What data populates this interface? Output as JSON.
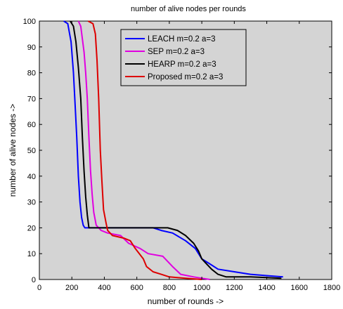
{
  "chart_data": {
    "type": "line",
    "title": "number of alive nodes per rounds",
    "xlabel": "number of rounds ->",
    "ylabel": "number of alive nodes ->",
    "xlim": [
      0,
      1800
    ],
    "ylim": [
      0,
      100
    ],
    "xticks": [
      0,
      200,
      400,
      600,
      800,
      1000,
      1200,
      1400,
      1600,
      1800
    ],
    "yticks": [
      0,
      10,
      20,
      30,
      40,
      50,
      60,
      70,
      80,
      90,
      100
    ],
    "grid": false,
    "plot_background": "#d4d4d4",
    "legend_position": "top-center",
    "series": [
      {
        "name": "LEACH m=0.2 a=3",
        "color": "#0000ff",
        "points": [
          [
            150,
            100
          ],
          [
            175,
            99
          ],
          [
            195,
            92
          ],
          [
            210,
            80
          ],
          [
            220,
            68
          ],
          [
            230,
            55
          ],
          [
            240,
            40
          ],
          [
            250,
            30
          ],
          [
            260,
            24
          ],
          [
            270,
            21
          ],
          [
            280,
            20
          ],
          [
            700,
            20
          ],
          [
            750,
            19
          ],
          [
            820,
            18
          ],
          [
            900,
            15
          ],
          [
            960,
            12
          ],
          [
            1000,
            8
          ],
          [
            1050,
            6
          ],
          [
            1100,
            4
          ],
          [
            1200,
            3
          ],
          [
            1300,
            2
          ],
          [
            1400,
            1.5
          ],
          [
            1500,
            1
          ]
        ]
      },
      {
        "name": "SEP m=0.2 a=3",
        "color": "#e000e0",
        "points": [
          [
            240,
            100
          ],
          [
            255,
            98
          ],
          [
            275,
            88
          ],
          [
            285,
            80
          ],
          [
            295,
            70
          ],
          [
            305,
            55
          ],
          [
            315,
            42
          ],
          [
            325,
            33
          ],
          [
            335,
            26
          ],
          [
            350,
            21
          ],
          [
            380,
            19
          ],
          [
            420,
            18
          ],
          [
            500,
            17
          ],
          [
            550,
            14
          ],
          [
            620,
            12
          ],
          [
            670,
            10
          ],
          [
            760,
            9
          ],
          [
            820,
            5
          ],
          [
            870,
            2
          ],
          [
            950,
            1
          ],
          [
            1000,
            0.5
          ],
          [
            1050,
            0
          ]
        ]
      },
      {
        "name": "HEARP m=0.2 a=3",
        "color": "#000000",
        "points": [
          [
            190,
            100
          ],
          [
            210,
            98
          ],
          [
            225,
            92
          ],
          [
            240,
            82
          ],
          [
            255,
            70
          ],
          [
            265,
            55
          ],
          [
            275,
            42
          ],
          [
            285,
            32
          ],
          [
            295,
            25
          ],
          [
            305,
            20
          ],
          [
            600,
            20
          ],
          [
            790,
            20
          ],
          [
            850,
            19
          ],
          [
            900,
            17
          ],
          [
            950,
            14
          ],
          [
            980,
            11
          ],
          [
            1000,
            8
          ],
          [
            1030,
            6
          ],
          [
            1060,
            4
          ],
          [
            1100,
            2
          ],
          [
            1150,
            1
          ],
          [
            1300,
            1
          ],
          [
            1490,
            0.5
          ]
        ]
      },
      {
        "name": "Proposed m=0.2 a=3",
        "color": "#dd0000",
        "points": [
          [
            300,
            100
          ],
          [
            330,
            99
          ],
          [
            345,
            95
          ],
          [
            355,
            85
          ],
          [
            365,
            70
          ],
          [
            375,
            50
          ],
          [
            385,
            38
          ],
          [
            395,
            27
          ],
          [
            410,
            22
          ],
          [
            420,
            19
          ],
          [
            450,
            17
          ],
          [
            520,
            16
          ],
          [
            560,
            15
          ],
          [
            590,
            12
          ],
          [
            640,
            8
          ],
          [
            660,
            5
          ],
          [
            700,
            3
          ],
          [
            750,
            2
          ],
          [
            800,
            1
          ],
          [
            900,
            0.5
          ],
          [
            1000,
            0
          ]
        ]
      }
    ]
  }
}
